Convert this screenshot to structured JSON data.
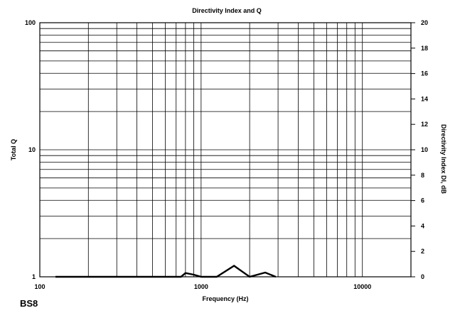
{
  "chart_data": {
    "type": "line",
    "title": "Directivity Index and Q",
    "xlabel": "Frequency (Hz)",
    "ylabel_left": "Total Q",
    "ylabel_right": "Directivity Index DI, dB",
    "xscale": "log",
    "xlim": [
      100,
      20000
    ],
    "yscale_left": "log",
    "ylim_left": [
      1,
      100
    ],
    "ylim_right": [
      0,
      20
    ],
    "grid": true,
    "x_ticks": [
      {
        "value": 100,
        "label": "100"
      },
      {
        "value": 1000,
        "label": "1000"
      },
      {
        "value": 10000,
        "label": "10000"
      }
    ],
    "y_left_ticks": [
      {
        "value": 1,
        "label": "1"
      },
      {
        "value": 10,
        "label": "10"
      },
      {
        "value": 100,
        "label": "100"
      }
    ],
    "y_right_ticks": [
      {
        "value": 0,
        "label": "0"
      },
      {
        "value": 2,
        "label": "2"
      },
      {
        "value": 4,
        "label": "4"
      },
      {
        "value": 6,
        "label": "6"
      },
      {
        "value": 8,
        "label": "8"
      },
      {
        "value": 10,
        "label": "10"
      },
      {
        "value": 12,
        "label": "12"
      },
      {
        "value": 14,
        "label": "14"
      },
      {
        "value": 16,
        "label": "16"
      },
      {
        "value": 18,
        "label": "18"
      },
      {
        "value": 20,
        "label": "20"
      }
    ],
    "series": [
      {
        "axis": "left",
        "color": "#000000",
        "x": [
          125,
          400,
          630,
          750,
          800,
          900,
          1000,
          1250,
          1600,
          2000,
          2500,
          2900
        ],
        "y": [
          1.0,
          1.0,
          1.0,
          1.0,
          1.07,
          1.04,
          1.0,
          1.0,
          1.22,
          1.0,
          1.08,
          1.0
        ]
      }
    ]
  },
  "model_label": "BS8"
}
